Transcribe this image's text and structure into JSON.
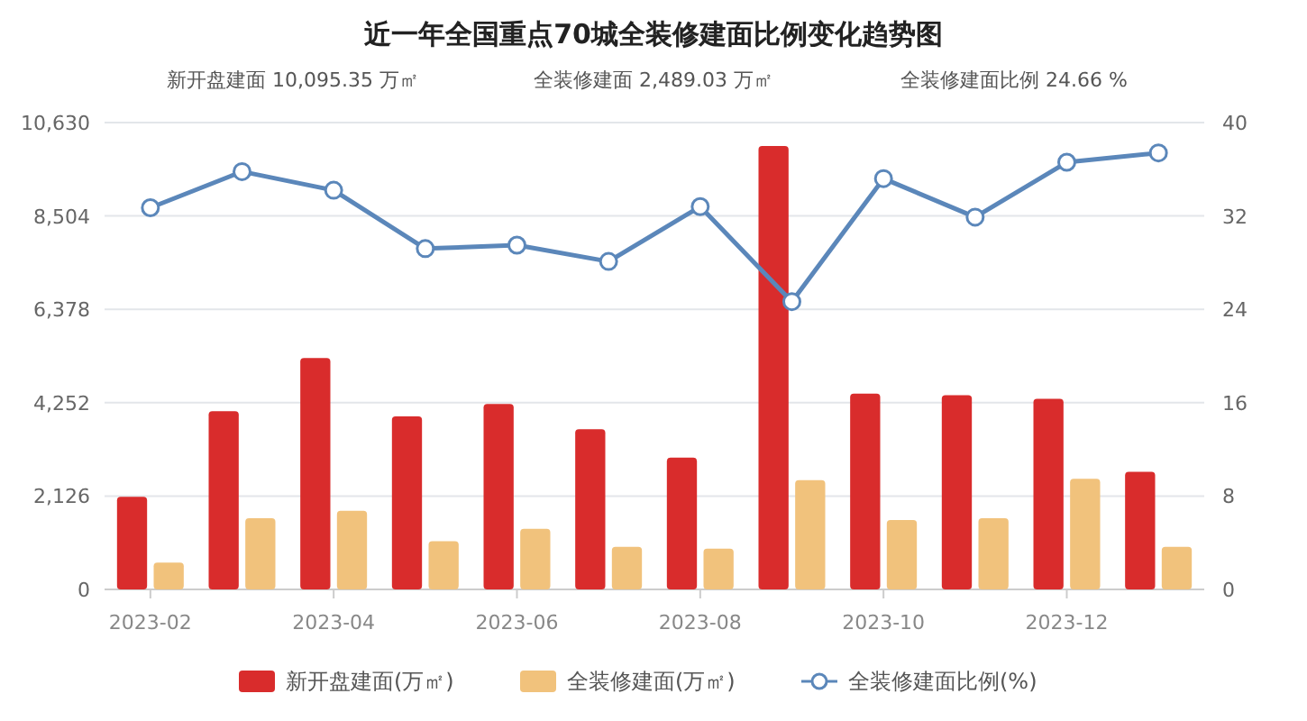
{
  "chart_data": {
    "type": "bar",
    "title": "近一年全国重点70城全装修建面比例变化趋势图",
    "categories": [
      "2023-02",
      null,
      "2023-04",
      null,
      "2023-06",
      null,
      "2023-08",
      null,
      "2023-10",
      null,
      "2023-12",
      null
    ],
    "series": [
      {
        "name": "新开盘建面(万㎡)",
        "color": "#d92c2c",
        "values": [
          2110,
          4060,
          5270,
          3940,
          4220,
          3650,
          3000,
          10095.35,
          4460,
          4420,
          4340,
          2680
        ]
      },
      {
        "name": "全装修建面(万㎡)",
        "color": "#f1c27c",
        "values": [
          610,
          1620,
          1790,
          1100,
          1380,
          970,
          930,
          2489.03,
          1580,
          1620,
          2520,
          970
        ]
      },
      {
        "name": "全装修建面比例(%)",
        "type": "line",
        "axis": "y2",
        "color": "#5b87ba",
        "marker": "circle",
        "values": [
          32.7,
          35.8,
          34.2,
          29.2,
          29.5,
          28.1,
          32.8,
          24.66,
          35.2,
          31.9,
          36.6,
          37.4
        ]
      }
    ],
    "ylim": [
      0,
      10630
    ],
    "yticks": [
      {
        "value": 0,
        "label": "0"
      },
      {
        "value": 2126,
        "label": "2,126"
      },
      {
        "value": 4252,
        "label": "4,252"
      },
      {
        "value": 6378,
        "label": "6,378"
      },
      {
        "value": 8504,
        "label": "8,504"
      },
      {
        "value": 10630,
        "label": "10,630"
      }
    ],
    "y2lim": [
      0,
      40
    ],
    "y2ticks": [
      0,
      8,
      16,
      24,
      32,
      40
    ],
    "annotations": [
      "新开盘建面 10,095.35 万㎡",
      "全装修建面 2,489.03 万㎡",
      "全装修建面比例 24.66 %"
    ],
    "grid": "y",
    "legend": "bottom"
  }
}
